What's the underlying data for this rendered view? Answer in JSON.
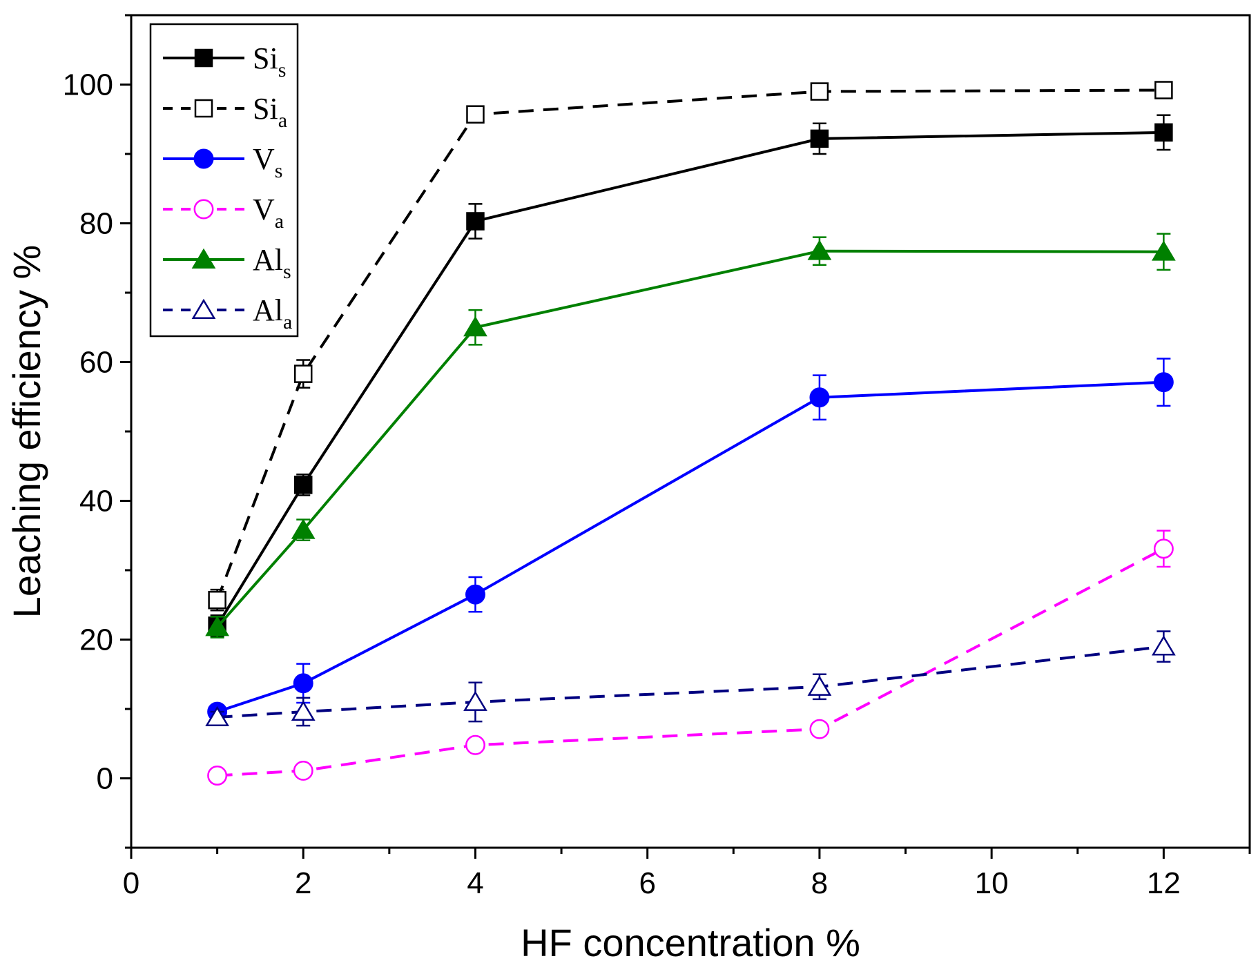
{
  "chart_data": {
    "type": "line",
    "title": "",
    "xlabel": "HF concentration %",
    "ylabel": "Leaching efficiency %",
    "xlim": [
      0,
      13
    ],
    "ylim": [
      -10,
      110
    ],
    "x_ticks": [
      0,
      2,
      4,
      6,
      8,
      10,
      12
    ],
    "y_ticks": [
      0,
      20,
      40,
      60,
      80,
      100
    ],
    "x_tick_labels": [
      "0",
      "2",
      "4",
      "6",
      "8",
      "10",
      "12"
    ],
    "y_tick_labels": [
      "0",
      "20",
      "40",
      "60",
      "80",
      "100"
    ],
    "grid": false,
    "legend_position": "top-left",
    "x": [
      1,
      2,
      4,
      8,
      12
    ],
    "series": [
      {
        "name": "Si",
        "subscript": "s",
        "color": "#000000",
        "dashed": false,
        "marker": "square",
        "filled": true,
        "values": [
          22,
          42.3,
          80.3,
          92.2,
          93.1
        ],
        "errors": [
          1.5,
          1.5,
          2.5,
          2.2,
          2.5
        ]
      },
      {
        "name": "Si",
        "subscript": "a",
        "color": "#000000",
        "dashed": true,
        "marker": "square",
        "filled": false,
        "values": [
          25.7,
          58.3,
          95.7,
          99,
          99.2
        ],
        "errors": [
          1.5,
          2,
          0.8,
          0.8,
          0.8
        ]
      },
      {
        "name": "V",
        "subscript": "s",
        "color": "#0000ff",
        "dashed": false,
        "marker": "circle",
        "filled": true,
        "values": [
          9.6,
          13.7,
          26.5,
          54.9,
          57.1
        ],
        "errors": [
          0.8,
          2.8,
          2.5,
          3.2,
          3.4
        ]
      },
      {
        "name": "V",
        "subscript": "a",
        "color": "#ff00ff",
        "dashed": true,
        "marker": "circle",
        "filled": false,
        "values": [
          0.4,
          1.1,
          4.8,
          7.1,
          33.1
        ],
        "errors": [
          0.5,
          0.5,
          0.5,
          0.5,
          2.6
        ]
      },
      {
        "name": "Al",
        "subscript": "s",
        "color": "#008000",
        "dashed": false,
        "marker": "triangle",
        "filled": true,
        "values": [
          21.8,
          35.8,
          65,
          76,
          75.9
        ],
        "errors": [
          1.5,
          1.5,
          2.5,
          2,
          2.6
        ]
      },
      {
        "name": "Al",
        "subscript": "a",
        "color": "#000080",
        "dashed": true,
        "marker": "triangle",
        "filled": false,
        "values": [
          8.8,
          9.6,
          11,
          13.2,
          19
        ],
        "errors": [
          0.8,
          2,
          2.8,
          1.8,
          2.2
        ]
      }
    ]
  }
}
